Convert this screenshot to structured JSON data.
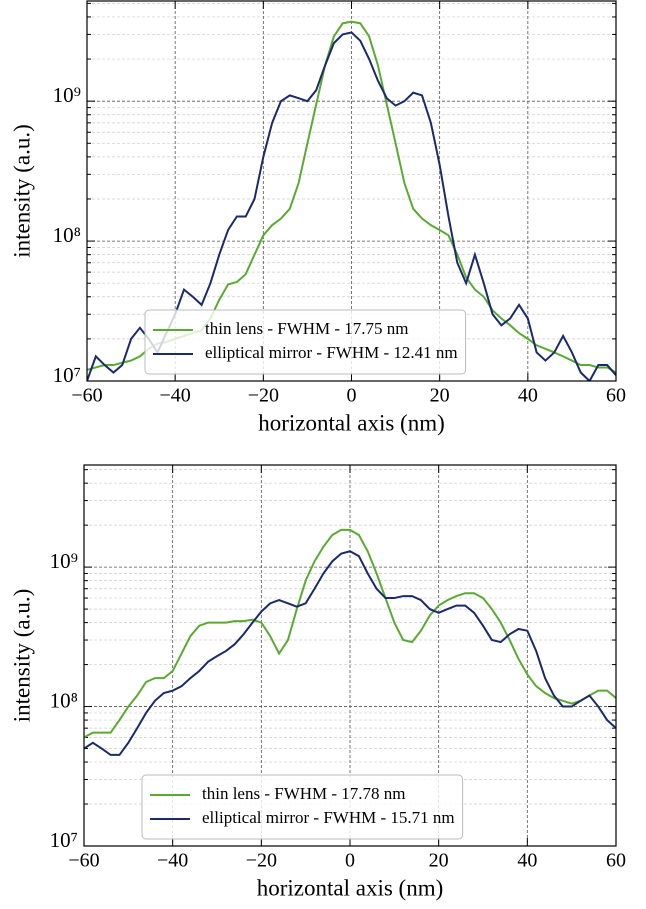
{
  "chart_data": [
    {
      "type": "line",
      "xlabel": "horizontal axis (nm)",
      "ylabel": "intensity (a.u.)",
      "log_y": true,
      "grid": true,
      "legend": "lower left",
      "xlim": [
        -60,
        60
      ],
      "ylim": [
        10000000.0,
        5200000000.0
      ],
      "xticks": [
        {
          "value": -60,
          "label": "−60"
        },
        {
          "value": -40,
          "label": "−40"
        },
        {
          "value": -20,
          "label": "−20"
        },
        0,
        20,
        40,
        60
      ],
      "yticks": [
        {
          "value": 10000000.0,
          "label": "10⁷"
        },
        {
          "value": 100000000.0,
          "label": "10⁸"
        },
        {
          "value": 1000000000.0,
          "label": "10⁹"
        }
      ],
      "minor_yticks": [
        20000000.0,
        30000000.0,
        40000000.0,
        50000000.0,
        60000000.0,
        70000000.0,
        80000000.0,
        90000000.0,
        200000000.0,
        300000000.0,
        400000000.0,
        500000000.0,
        600000000.0,
        700000000.0,
        800000000.0,
        900000000.0,
        2000000000.0,
        3000000000.0,
        4000000000.0,
        5000000000.0
      ],
      "x": [
        -60,
        -58,
        -56,
        -54,
        -52,
        -50,
        -48,
        -46,
        -44,
        -42,
        -40,
        -38,
        -36,
        -34,
        -32,
        -30,
        -28,
        -26,
        -24,
        -22,
        -20,
        -18,
        -16,
        -14,
        -12,
        -10,
        -8,
        -6,
        -4,
        -2,
        0,
        2,
        4,
        6,
        8,
        10,
        12,
        14,
        16,
        18,
        20,
        22,
        24,
        26,
        28,
        30,
        32,
        34,
        36,
        38,
        40,
        42,
        44,
        46,
        48,
        50,
        52,
        54,
        56,
        58,
        60
      ],
      "series": [
        {
          "name": "thin lens - FWHM - 17.75 nm",
          "color": "#5aaa32",
          "values": [
            12000000.0,
            12500000.0,
            13000000.0,
            13000000.0,
            13500000.0,
            14000000.0,
            15000000.0,
            17000000.0,
            18500000.0,
            19000000.0,
            20000000.0,
            21000000.0,
            22000000.0,
            23000000.0,
            28000000.0,
            38000000.0,
            49000000.0,
            51000000.0,
            58000000.0,
            80000000.0,
            110000000.0,
            130000000.0,
            145000000.0,
            170000000.0,
            260000000.0,
            500000000.0,
            950000000.0,
            1800000000.0,
            2900000000.0,
            3600000000.0,
            3700000000.0,
            3600000000.0,
            2900000000.0,
            1800000000.0,
            950000000.0,
            500000000.0,
            260000000.0,
            170000000.0,
            145000000.0,
            130000000.0,
            120000000.0,
            110000000.0,
            80000000.0,
            55000000.0,
            45000000.0,
            40000000.0,
            32000000.0,
            28000000.0,
            25000000.0,
            22000000.0,
            20000000.0,
            18000000.0,
            17000000.0,
            16000000.0,
            15000000.0,
            14000000.0,
            13000000.0,
            13000000.0,
            12500000.0,
            12500000.0,
            11500000.0
          ]
        },
        {
          "name": "elliptical mirror - FWHM - 12.41 nm",
          "color": "#1a2a6c",
          "values": [
            10000000.0,
            15000000.0,
            13000000.0,
            11500000.0,
            13000000.0,
            20000000.0,
            24000000.0,
            20000000.0,
            16000000.0,
            22000000.0,
            30000000.0,
            45000000.0,
            40000000.0,
            35000000.0,
            50000000.0,
            80000000.0,
            120000000.0,
            150000000.0,
            150000000.0,
            200000000.0,
            400000000.0,
            700000000.0,
            1000000000.0,
            1100000000.0,
            1050000000.0,
            1000000000.0,
            1200000000.0,
            1800000000.0,
            2600000000.0,
            3000000000.0,
            3100000000.0,
            2700000000.0,
            2000000000.0,
            1400000000.0,
            1050000000.0,
            930000000.0,
            1000000000.0,
            1150000000.0,
            1100000000.0,
            700000000.0,
            350000000.0,
            150000000.0,
            70000000.0,
            50000000.0,
            80000000.0,
            50000000.0,
            30000000.0,
            25000000.0,
            28000000.0,
            35000000.0,
            28000000.0,
            16000000.0,
            14000000.0,
            16000000.0,
            21000000.0,
            16000000.0,
            11500000.0,
            10000000.0,
            13000000.0,
            13000000.0,
            11000000.0
          ]
        }
      ]
    },
    {
      "type": "line",
      "xlabel": "horizontal axis (nm)",
      "ylabel": "intensity (a.u.)",
      "log_y": true,
      "grid": true,
      "legend": "lower left",
      "xlim": [
        -60,
        60
      ],
      "ylim": [
        10000000.0,
        5400000000.0
      ],
      "xticks": [
        {
          "value": -60,
          "label": "−60"
        },
        {
          "value": -40,
          "label": "−40"
        },
        {
          "value": -20,
          "label": "−20"
        },
        0,
        20,
        40,
        60
      ],
      "yticks": [
        {
          "value": 10000000.0,
          "label": "10⁷"
        },
        {
          "value": 100000000.0,
          "label": "10⁸"
        },
        {
          "value": 1000000000.0,
          "label": "10⁹"
        }
      ],
      "minor_yticks": [
        20000000.0,
        30000000.0,
        40000000.0,
        50000000.0,
        60000000.0,
        70000000.0,
        80000000.0,
        90000000.0,
        200000000.0,
        300000000.0,
        400000000.0,
        500000000.0,
        600000000.0,
        700000000.0,
        800000000.0,
        900000000.0,
        2000000000.0,
        3000000000.0,
        4000000000.0,
        5000000000.0
      ],
      "x": [
        -60,
        -58,
        -56,
        -54,
        -52,
        -50,
        -48,
        -46,
        -44,
        -42,
        -40,
        -38,
        -36,
        -34,
        -32,
        -30,
        -28,
        -26,
        -24,
        -22,
        -20,
        -18,
        -16,
        -14,
        -12,
        -10,
        -8,
        -6,
        -4,
        -2,
        0,
        2,
        4,
        6,
        8,
        10,
        12,
        14,
        16,
        18,
        20,
        22,
        24,
        26,
        28,
        30,
        32,
        34,
        36,
        38,
        40,
        42,
        44,
        46,
        48,
        50,
        52,
        54,
        56,
        58,
        60
      ],
      "series": [
        {
          "name": "thin lens - FWHM - 17.78 nm",
          "color": "#5aaa32",
          "values": [
            60000000.0,
            65000000.0,
            65000000.0,
            65000000.0,
            80000000.0,
            100000000.0,
            120000000.0,
            150000000.0,
            160000000.0,
            160000000.0,
            180000000.0,
            240000000.0,
            320000000.0,
            380000000.0,
            400000000.0,
            400000000.0,
            400000000.0,
            410000000.0,
            410000000.0,
            420000000.0,
            400000000.0,
            320000000.0,
            240000000.0,
            300000000.0,
            500000000.0,
            800000000.0,
            1100000000.0,
            1400000000.0,
            1700000000.0,
            1850000000.0,
            1850000000.0,
            1700000000.0,
            1300000000.0,
            900000000.0,
            600000000.0,
            400000000.0,
            300000000.0,
            290000000.0,
            350000000.0,
            450000000.0,
            530000000.0,
            580000000.0,
            620000000.0,
            650000000.0,
            650000000.0,
            600000000.0,
            500000000.0,
            400000000.0,
            300000000.0,
            220000000.0,
            170000000.0,
            140000000.0,
            125000000.0,
            115000000.0,
            110000000.0,
            105000000.0,
            110000000.0,
            120000000.0,
            130000000.0,
            130000000.0,
            115000000.0
          ]
        },
        {
          "name": "elliptical mirror - FWHM - 15.71 nm",
          "color": "#1a2a6c",
          "values": [
            50000000.0,
            55000000.0,
            50000000.0,
            45000000.0,
            45000000.0,
            55000000.0,
            70000000.0,
            90000000.0,
            110000000.0,
            125000000.0,
            130000000.0,
            140000000.0,
            160000000.0,
            180000000.0,
            210000000.0,
            230000000.0,
            250000000.0,
            280000000.0,
            330000000.0,
            400000000.0,
            480000000.0,
            550000000.0,
            580000000.0,
            550000000.0,
            520000000.0,
            550000000.0,
            700000000.0,
            900000000.0,
            1100000000.0,
            1250000000.0,
            1300000000.0,
            1200000000.0,
            900000000.0,
            700000000.0,
            600000000.0,
            600000000.0,
            620000000.0,
            620000000.0,
            580000000.0,
            500000000.0,
            470000000.0,
            500000000.0,
            530000000.0,
            530000000.0,
            470000000.0,
            380000000.0,
            300000000.0,
            290000000.0,
            330000000.0,
            360000000.0,
            350000000.0,
            250000000.0,
            160000000.0,
            120000000.0,
            100000000.0,
            100000000.0,
            110000000.0,
            120000000.0,
            100000000.0,
            80000000.0,
            70000000.0
          ]
        }
      ]
    }
  ]
}
